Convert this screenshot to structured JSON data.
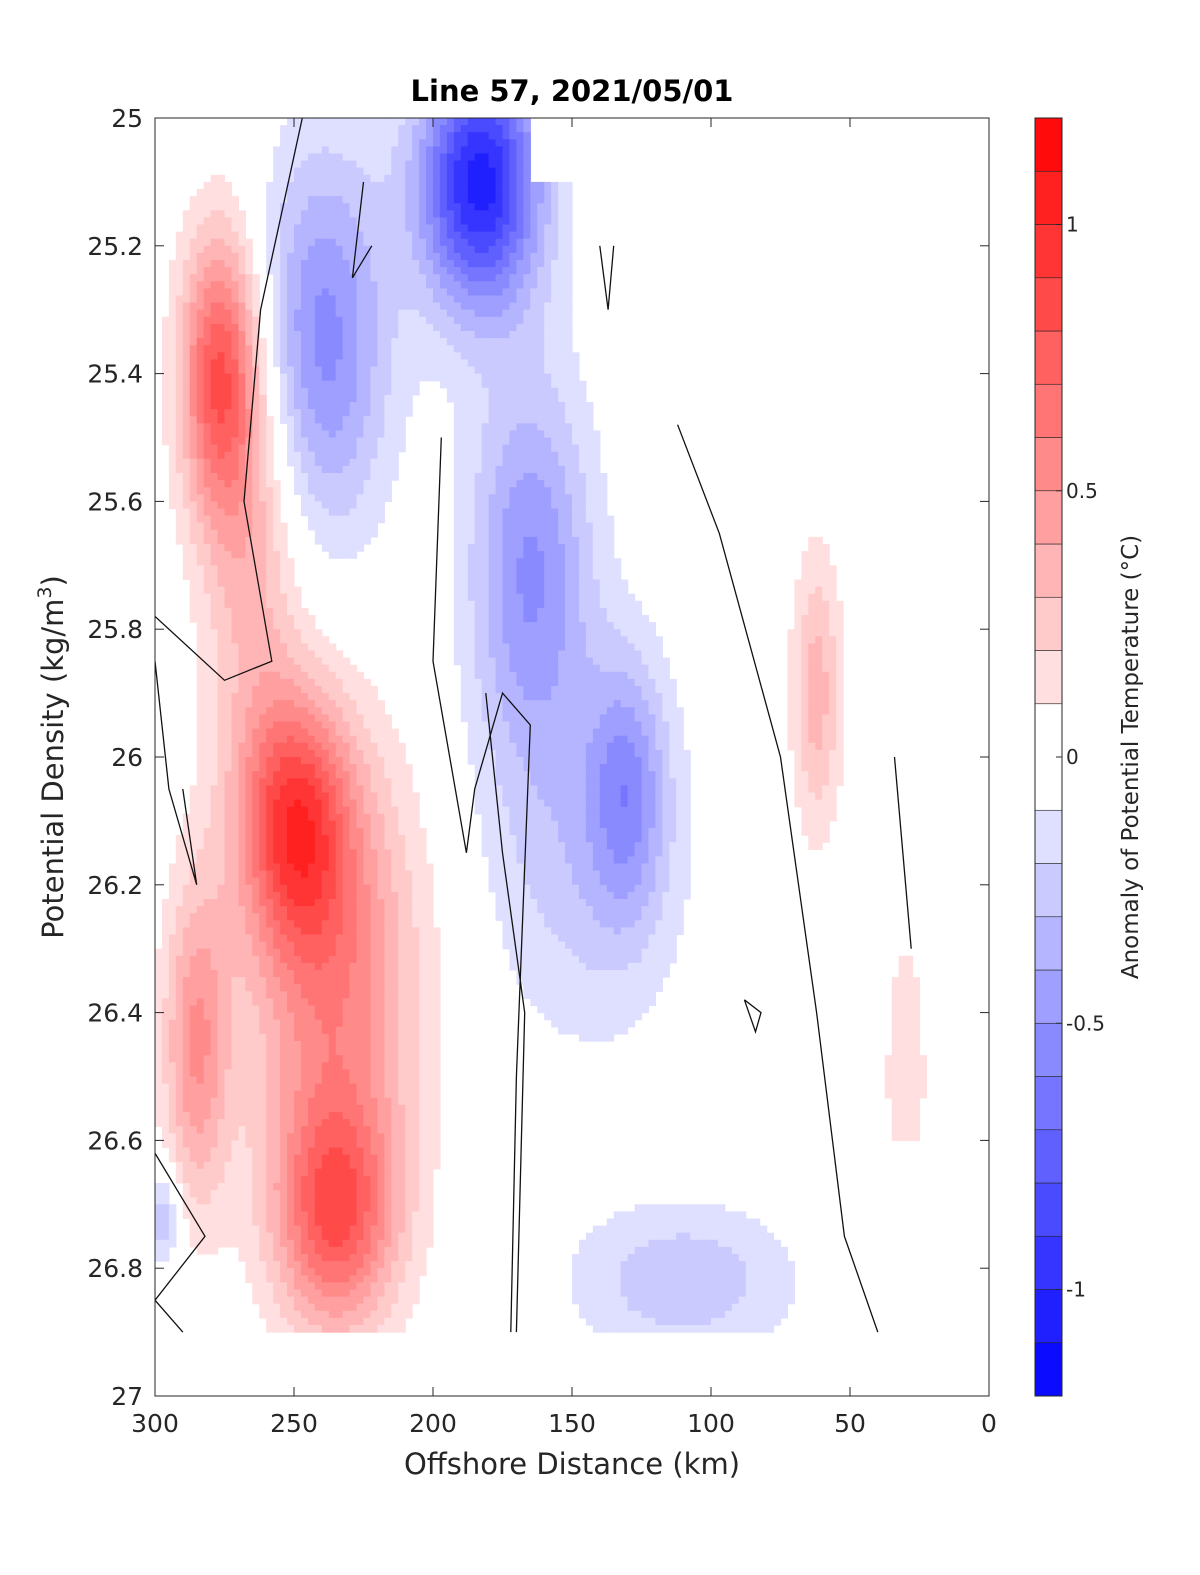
{
  "chart_data": {
    "type": "heatmap",
    "title": "Line 57, 2021/05/01",
    "xlabel": "Offshore Distance (km)",
    "ylabel_main": "Potential Density (kg/m",
    "ylabel_sup": "3",
    "ylabel_close": ")",
    "xlim": [
      300,
      0
    ],
    "ylim": [
      25,
      27
    ],
    "y_reversed": true,
    "x_ticks": [
      300,
      250,
      200,
      150,
      100,
      50,
      0
    ],
    "x_tick_labels": [
      "300",
      "250",
      "200",
      "150",
      "100",
      "50",
      "0"
    ],
    "y_ticks": [
      25,
      25.2,
      25.4,
      25.6,
      25.8,
      26,
      26.2,
      26.4,
      26.6,
      26.8,
      27
    ],
    "y_tick_labels": [
      "25",
      "25.2",
      "25.4",
      "25.6",
      "25.8",
      "26",
      "26.2",
      "26.4",
      "26.6",
      "26.8",
      "27"
    ],
    "colorbar": {
      "label": "Anomaly of Potential Temperature (°C)",
      "limits": [
        -1.2,
        1.2
      ],
      "ticks": [
        -1,
        -0.5,
        0,
        0.5,
        1
      ],
      "tick_labels": [
        "-1",
        "-0.5",
        "0",
        "0.5",
        "1"
      ],
      "levels": [
        -1.2,
        -1.1,
        -1.0,
        -0.9,
        -0.8,
        -0.7,
        -0.6,
        -0.5,
        -0.4,
        -0.3,
        -0.2,
        -0.1,
        0.1,
        0.2,
        0.3,
        0.4,
        0.5,
        0.6,
        0.7,
        0.8,
        0.9,
        1.0,
        1.1,
        1.2
      ]
    },
    "features": [
      {
        "name": "warm core upper",
        "x": 277,
        "y": 25.4,
        "value": 0.75,
        "sx": 14,
        "sy": 0.22
      },
      {
        "name": "warm upper ridge",
        "x": 265,
        "y": 25.65,
        "value": 0.35,
        "sx": 18,
        "sy": 0.35
      },
      {
        "name": "warm mid core",
        "x": 250,
        "y": 26.1,
        "value": 0.75,
        "sx": 20,
        "sy": 0.2
      },
      {
        "name": "warm mid band",
        "x": 235,
        "y": 26.35,
        "value": 0.55,
        "sx": 30,
        "sy": 0.35
      },
      {
        "name": "warm deep core",
        "x": 235,
        "y": 26.72,
        "value": 0.7,
        "sx": 22,
        "sy": 0.18
      },
      {
        "name": "warm west deep",
        "x": 285,
        "y": 26.45,
        "value": 0.5,
        "sx": 12,
        "sy": 0.25
      },
      {
        "name": "warm east shelf",
        "x": 62,
        "y": 25.9,
        "value": 0.35,
        "sx": 9,
        "sy": 0.22
      },
      {
        "name": "warm coastal deep",
        "x": 30,
        "y": 26.5,
        "value": 0.15,
        "sx": 10,
        "sy": 0.3
      },
      {
        "name": "cold surface core",
        "x": 183,
        "y": 25.1,
        "value": -1.05,
        "sx": 22,
        "sy": 0.2
      },
      {
        "name": "cold western lobe",
        "x": 240,
        "y": 25.35,
        "value": -0.55,
        "sx": 24,
        "sy": 0.3
      },
      {
        "name": "cold central tongue",
        "x": 165,
        "y": 25.7,
        "value": -0.5,
        "sx": 22,
        "sy": 0.3
      },
      {
        "name": "cold offshore patch",
        "x": 130,
        "y": 26.05,
        "value": -0.4,
        "sx": 14,
        "sy": 0.2
      },
      {
        "name": "cold mid band",
        "x": 145,
        "y": 26.15,
        "value": -0.25,
        "sx": 35,
        "sy": 0.3
      },
      {
        "name": "cold deep band",
        "x": 110,
        "y": 26.82,
        "value": -0.28,
        "sx": 40,
        "sy": 0.12
      },
      {
        "name": "cold far west deep",
        "x": 297,
        "y": 26.72,
        "value": -0.3,
        "sx": 6,
        "sy": 0.08
      }
    ],
    "coverage": [
      {
        "x": 300,
        "y_max": 26.9
      },
      {
        "x": 170,
        "y_max": 26.9
      },
      {
        "x": 165,
        "y_min": 25.1
      },
      {
        "x": 50,
        "y_max": 26.9
      },
      {
        "x": 20,
        "y_min": 26.3,
        "y_max": 26.6
      }
    ],
    "zero_contours": 9
  }
}
